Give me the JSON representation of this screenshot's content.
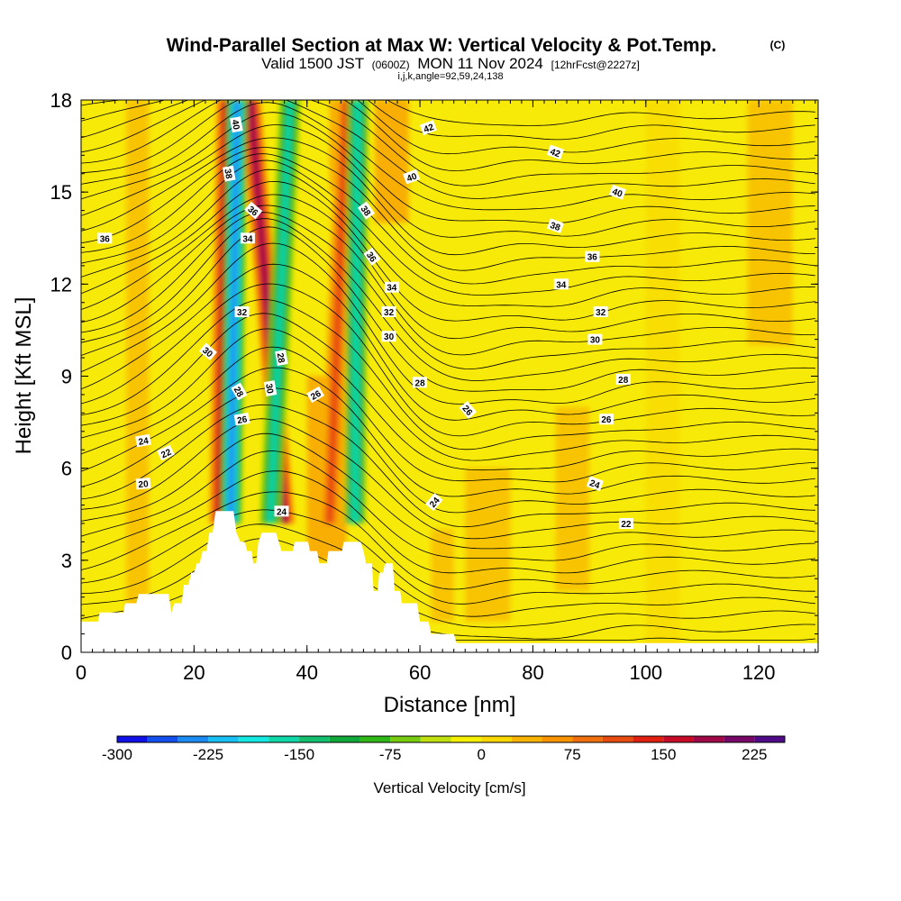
{
  "chart_data": {
    "type": "heatmap",
    "title": "Wind-Parallel Section at Max W: Vertical Velocity & Pot.Temp.",
    "copyright": "(C)",
    "subtitle_main": "Valid 1500 JST",
    "subtitle_small": "(0600Z)",
    "subtitle_date": "MON 11 Nov 2024",
    "subtitle_fcst": "[12hrFcst@2227z]",
    "subtitle_index": "i,j,k,angle=92,59,24,138",
    "xlabel": "Distance [nm]",
    "ylabel": "Height [Kft MSL]",
    "x_range": [
      0,
      130.5
    ],
    "y_range": [
      0,
      18
    ],
    "x_ticks": [
      0,
      20,
      40,
      60,
      80,
      100,
      120
    ],
    "y_ticks": [
      0,
      3,
      6,
      9,
      12,
      15,
      18
    ],
    "colorbar": {
      "label": "Vertical Velocity [cm/s]",
      "min": -300,
      "max": 250,
      "step": 25,
      "tick_values": [
        -300,
        -225,
        -150,
        -75,
        0,
        75,
        150,
        225
      ],
      "tick_labels": [
        "-300",
        "-225",
        "-150",
        "-75",
        "0",
        "75",
        "150",
        "225"
      ],
      "colors": [
        "#1010e8",
        "#1450f0",
        "#1c8cf4",
        "#18c0f4",
        "#14e8e0",
        "#10d8a8",
        "#14c070",
        "#10a838",
        "#30b818",
        "#78cc10",
        "#c0e010",
        "#f4f000",
        "#f8d800",
        "#f8b400",
        "#f89400",
        "#f07010",
        "#e84c10",
        "#e02010",
        "#c80c28",
        "#a00848",
        "#780868",
        "#500c88"
      ]
    },
    "updrafts": [
      {
        "x_bottom": 24.5,
        "x_top": 25.8,
        "peak_cm_s": 165
      },
      {
        "x_bottom": 36.0,
        "x_top": 30.0,
        "peak_cm_s": 185
      },
      {
        "x_bottom": 44.0,
        "x_top": 47.0,
        "peak_cm_s": 115
      }
    ],
    "downdrafts": [
      {
        "x_bottom": 26.5,
        "x_top": 27.6,
        "peak_cm_s": -230
      },
      {
        "x_bottom": 33.5,
        "x_top": 37.0,
        "peak_cm_s": -155
      },
      {
        "x_bottom": 48.5,
        "x_top": 49.0,
        "peak_cm_s": -170
      }
    ],
    "terrain": [
      {
        "x": 0,
        "y": 1.0
      },
      {
        "x": 3,
        "y": 1.0
      },
      {
        "x": 3.3,
        "y": 1.3
      },
      {
        "x": 7.5,
        "y": 1.3
      },
      {
        "x": 7.8,
        "y": 1.6
      },
      {
        "x": 9.8,
        "y": 1.6
      },
      {
        "x": 10.2,
        "y": 1.9
      },
      {
        "x": 15.5,
        "y": 1.9
      },
      {
        "x": 16.0,
        "y": 1.3
      },
      {
        "x": 16.5,
        "y": 1.6
      },
      {
        "x": 17.8,
        "y": 1.6
      },
      {
        "x": 18.2,
        "y": 2.2
      },
      {
        "x": 19.0,
        "y": 2.2
      },
      {
        "x": 19.5,
        "y": 2.6
      },
      {
        "x": 20.0,
        "y": 2.6
      },
      {
        "x": 20.5,
        "y": 2.9
      },
      {
        "x": 21.0,
        "y": 2.9
      },
      {
        "x": 21.5,
        "y": 3.3
      },
      {
        "x": 22.2,
        "y": 3.3
      },
      {
        "x": 22.7,
        "y": 3.9
      },
      {
        "x": 23.3,
        "y": 3.9
      },
      {
        "x": 23.8,
        "y": 4.6
      },
      {
        "x": 27.0,
        "y": 4.6
      },
      {
        "x": 27.5,
        "y": 3.9
      },
      {
        "x": 28.2,
        "y": 3.6
      },
      {
        "x": 29.0,
        "y": 3.6
      },
      {
        "x": 29.4,
        "y": 3.3
      },
      {
        "x": 30.2,
        "y": 3.3
      },
      {
        "x": 30.5,
        "y": 2.9
      },
      {
        "x": 31.0,
        "y": 2.9
      },
      {
        "x": 31.4,
        "y": 3.6
      },
      {
        "x": 32.0,
        "y": 3.9
      },
      {
        "x": 34.5,
        "y": 3.9
      },
      {
        "x": 35.0,
        "y": 3.6
      },
      {
        "x": 35.5,
        "y": 3.3
      },
      {
        "x": 37.5,
        "y": 3.3
      },
      {
        "x": 37.8,
        "y": 3.6
      },
      {
        "x": 40.2,
        "y": 3.6
      },
      {
        "x": 40.5,
        "y": 3.3
      },
      {
        "x": 41.8,
        "y": 3.3
      },
      {
        "x": 42.2,
        "y": 2.9
      },
      {
        "x": 43.5,
        "y": 2.9
      },
      {
        "x": 43.8,
        "y": 3.3
      },
      {
        "x": 46.2,
        "y": 3.3
      },
      {
        "x": 46.5,
        "y": 3.6
      },
      {
        "x": 49.5,
        "y": 3.6
      },
      {
        "x": 50.0,
        "y": 3.3
      },
      {
        "x": 50.5,
        "y": 2.9
      },
      {
        "x": 51.5,
        "y": 2.9
      },
      {
        "x": 51.8,
        "y": 2.0
      },
      {
        "x": 52.5,
        "y": 2.0
      },
      {
        "x": 52.8,
        "y": 2.6
      },
      {
        "x": 53.5,
        "y": 2.6
      },
      {
        "x": 53.8,
        "y": 2.9
      },
      {
        "x": 55.2,
        "y": 2.9
      },
      {
        "x": 55.5,
        "y": 2.0
      },
      {
        "x": 56.5,
        "y": 2.0
      },
      {
        "x": 56.8,
        "y": 1.6
      },
      {
        "x": 59.5,
        "y": 1.6
      },
      {
        "x": 60.0,
        "y": 1.0
      },
      {
        "x": 61.5,
        "y": 1.0
      },
      {
        "x": 62.0,
        "y": 0.6
      },
      {
        "x": 66.0,
        "y": 0.6
      },
      {
        "x": 66.5,
        "y": 0.3
      },
      {
        "x": 130.5,
        "y": 0.3
      }
    ],
    "contour_labels": [
      {
        "x": 4.2,
        "y": 13.5,
        "text": "36",
        "rot": 0
      },
      {
        "x": 11.0,
        "y": 6.9,
        "text": "24",
        "rot": -10
      },
      {
        "x": 15.0,
        "y": 6.5,
        "text": "22",
        "rot": -25
      },
      {
        "x": 11.0,
        "y": 5.5,
        "text": "20",
        "rot": -5
      },
      {
        "x": 22.5,
        "y": 9.8,
        "text": "30",
        "rot": 40
      },
      {
        "x": 28.5,
        "y": 11.1,
        "text": "32",
        "rot": 0
      },
      {
        "x": 28.0,
        "y": 8.5,
        "text": "28",
        "rot": 60
      },
      {
        "x": 28.5,
        "y": 7.6,
        "text": "26",
        "rot": -10
      },
      {
        "x": 29.5,
        "y": 13.5,
        "text": "34",
        "rot": 0
      },
      {
        "x": 30.5,
        "y": 14.4,
        "text": "36",
        "rot": 40
      },
      {
        "x": 26.2,
        "y": 15.6,
        "text": "38",
        "rot": 80
      },
      {
        "x": 27.5,
        "y": 17.2,
        "text": "40",
        "rot": 80
      },
      {
        "x": 33.5,
        "y": 8.6,
        "text": "30",
        "rot": 80
      },
      {
        "x": 35.5,
        "y": 9.6,
        "text": "28",
        "rot": 80
      },
      {
        "x": 35.5,
        "y": 4.6,
        "text": "24",
        "rot": 0
      },
      {
        "x": 41.5,
        "y": 8.4,
        "text": "26",
        "rot": -30
      },
      {
        "x": 50.5,
        "y": 14.4,
        "text": "38",
        "rot": 55
      },
      {
        "x": 51.5,
        "y": 12.9,
        "text": "36",
        "rot": 55
      },
      {
        "x": 55.0,
        "y": 11.9,
        "text": "34",
        "rot": 0
      },
      {
        "x": 54.5,
        "y": 11.1,
        "text": "32",
        "rot": 0
      },
      {
        "x": 54.5,
        "y": 10.3,
        "text": "30",
        "rot": 0
      },
      {
        "x": 60.0,
        "y": 8.8,
        "text": "28",
        "rot": 0
      },
      {
        "x": 58.5,
        "y": 15.5,
        "text": "40",
        "rot": -20
      },
      {
        "x": 61.5,
        "y": 17.1,
        "text": "42",
        "rot": -20
      },
      {
        "x": 68.5,
        "y": 7.9,
        "text": "26",
        "rot": 50
      },
      {
        "x": 62.5,
        "y": 4.9,
        "text": "24",
        "rot": -50
      },
      {
        "x": 84.0,
        "y": 16.3,
        "text": "42",
        "rot": 20
      },
      {
        "x": 95.0,
        "y": 15.0,
        "text": "40",
        "rot": 20
      },
      {
        "x": 84.0,
        "y": 13.9,
        "text": "38",
        "rot": 20
      },
      {
        "x": 90.5,
        "y": 12.9,
        "text": "36",
        "rot": 0
      },
      {
        "x": 85.0,
        "y": 12.0,
        "text": "34",
        "rot": 0
      },
      {
        "x": 92.0,
        "y": 11.1,
        "text": "32",
        "rot": 0
      },
      {
        "x": 91.0,
        "y": 10.2,
        "text": "30",
        "rot": 0
      },
      {
        "x": 96.0,
        "y": 8.9,
        "text": "28",
        "rot": 0
      },
      {
        "x": 93.0,
        "y": 7.6,
        "text": "26",
        "rot": 0
      },
      {
        "x": 91.0,
        "y": 5.5,
        "text": "24",
        "rot": 20
      },
      {
        "x": 96.5,
        "y": 4.2,
        "text": "22",
        "rot": 0
      }
    ]
  }
}
